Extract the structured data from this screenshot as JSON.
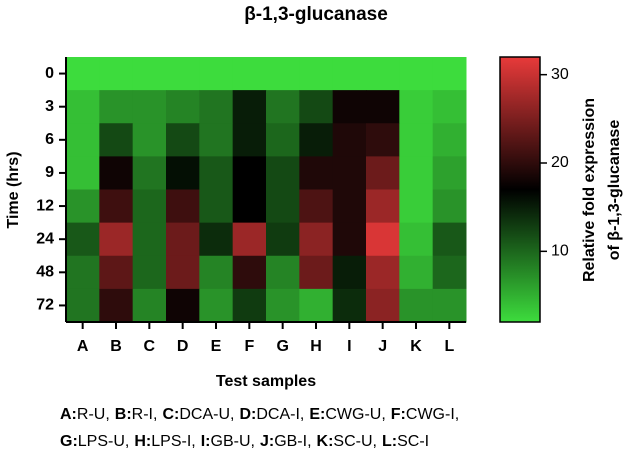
{
  "chart_data": {
    "type": "heatmap",
    "title": "β-1,3-glucanase",
    "x_label": "Test samples",
    "y_label": "Time (hrs)",
    "x": [
      "A",
      "B",
      "C",
      "D",
      "E",
      "F",
      "G",
      "H",
      "I",
      "J",
      "K",
      "L"
    ],
    "y": [
      "0",
      "3",
      "6",
      "9",
      "12",
      "24",
      "48",
      "72"
    ],
    "values": [
      [
        2,
        2,
        2,
        2,
        2,
        2,
        2,
        2,
        2,
        2,
        2,
        2
      ],
      [
        4,
        7,
        7,
        8,
        9,
        15,
        9,
        12,
        18,
        18,
        3,
        4
      ],
      [
        4,
        12,
        7,
        12,
        9,
        15,
        10,
        15,
        19,
        20,
        3,
        5
      ],
      [
        4,
        18,
        9,
        16,
        11,
        17,
        12,
        19,
        19,
        24,
        3,
        6
      ],
      [
        7,
        21,
        10,
        21,
        11,
        17,
        12,
        22,
        19,
        27,
        3,
        7
      ],
      [
        11,
        27,
        10,
        24,
        14,
        27,
        13,
        26,
        19,
        31,
        4,
        11
      ],
      [
        9,
        23,
        10,
        24,
        8,
        20,
        8,
        24,
        15,
        27,
        5,
        10
      ],
      [
        9,
        20,
        8,
        18,
        7,
        13,
        7,
        5,
        14,
        26,
        7,
        7
      ]
    ],
    "colorbar_label": [
      "Relative fold expression",
      "of β-1,3-glucanase"
    ],
    "zlim": [
      2,
      32
    ],
    "zticks": [
      10,
      20,
      30
    ],
    "colors": [
      "#3ddc3d",
      "#000000",
      "#e83a3a"
    ],
    "note": [
      [
        {
          "key": "A:",
          "text": "R-U,"
        },
        {
          "key": "B:",
          "text": "R-I,"
        },
        {
          "key": "C:",
          "text": "DCA-U,"
        },
        {
          "key": "D:",
          "text": "DCA-I,"
        },
        {
          "key": "E:",
          "text": "CWG-U,"
        },
        {
          "key": "F:",
          "text": "CWG-I,"
        }
      ],
      [
        {
          "key": "G:",
          "text": "LPS-U,"
        },
        {
          "key": "H:",
          "text": "LPS-I,"
        },
        {
          "key": "I:",
          "text": "GB-U,"
        },
        {
          "key": "J:",
          "text": "GB-I,"
        },
        {
          "key": "K:",
          "text": "SC-U,"
        },
        {
          "key": "L:",
          "text": "SC-I"
        }
      ]
    ]
  }
}
